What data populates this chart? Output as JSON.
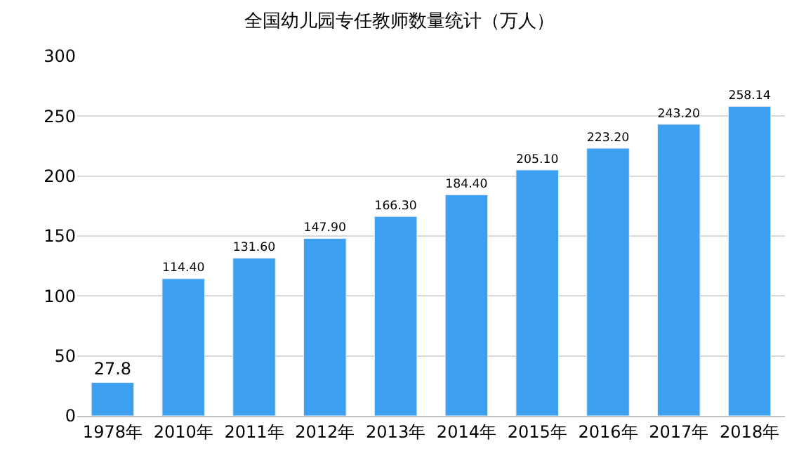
{
  "chart_data": {
    "type": "bar",
    "title": "全国幼儿园专任教师数量统计（万人）",
    "categories": [
      "1978年",
      "2010年",
      "2011年",
      "2012年",
      "2013年",
      "2014年",
      "2015年",
      "2016年",
      "2017年",
      "2018年"
    ],
    "values": [
      27.8,
      114.4,
      131.6,
      147.9,
      166.3,
      184.4,
      205.1,
      223.2,
      243.2,
      258.14
    ],
    "value_labels": [
      "27.8",
      "114.40",
      "131.60",
      "147.90",
      "166.30",
      "184.40",
      "205.10",
      "223.20",
      "243.20",
      "258.14"
    ],
    "color": "#3d9ff0",
    "ylim": [
      0,
      300
    ],
    "yticks": [
      0,
      50,
      100,
      150,
      200,
      250,
      300
    ],
    "grid": "y",
    "legend": false
  }
}
